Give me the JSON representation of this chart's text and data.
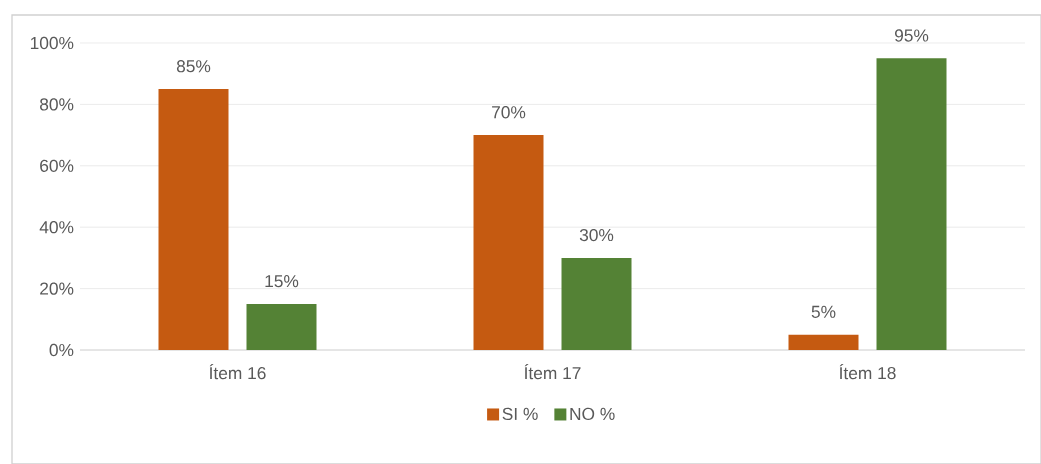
{
  "chart_data": {
    "type": "bar",
    "categories": [
      "Ítem 16",
      "Ítem 17",
      "Ítem 18"
    ],
    "series": [
      {
        "name": "SI %",
        "color": "#c55a11",
        "values": [
          85,
          70,
          5
        ],
        "value_labels": [
          "85%",
          "70%",
          "5%"
        ]
      },
      {
        "name": "NO %",
        "color": "#548235",
        "values": [
          15,
          30,
          95
        ],
        "value_labels": [
          "15%",
          "30%",
          "95%"
        ]
      }
    ],
    "ylim": [
      0,
      100
    ],
    "yticks": [
      {
        "value": 0,
        "label": "0%"
      },
      {
        "value": 20,
        "label": "20%"
      },
      {
        "value": 40,
        "label": "40%"
      },
      {
        "value": 60,
        "label": "60%"
      },
      {
        "value": 80,
        "label": "80%"
      },
      {
        "value": 100,
        "label": "100%"
      }
    ],
    "grid": "y",
    "legend": "bottom"
  }
}
